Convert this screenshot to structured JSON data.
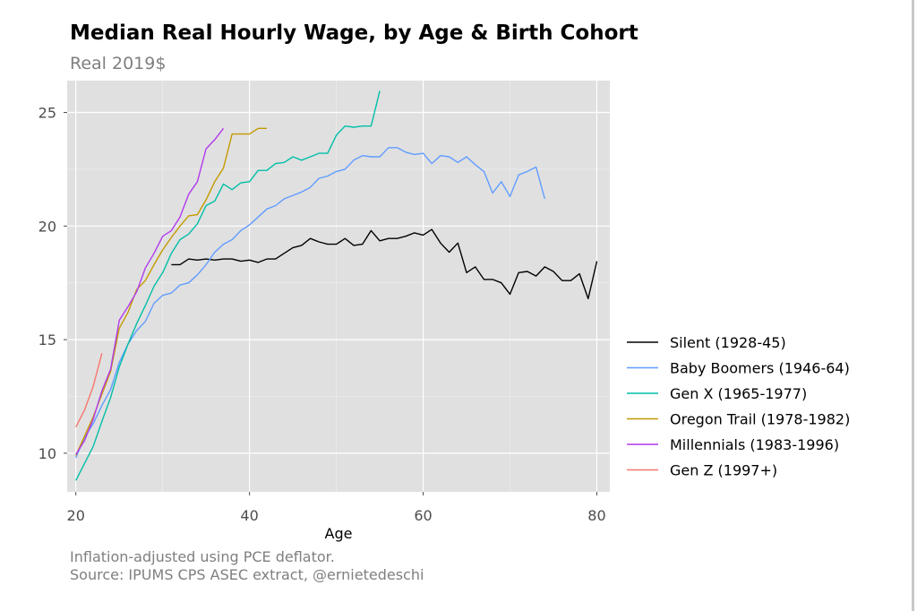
{
  "title": "Median Real Hourly Wage, by Age & Birth Cohort",
  "subtitle": "Real 2019$",
  "caption_line1": "Inflation-adjusted using PCE deflator.",
  "caption_line2": "Source: IPUMS CPS ASEC extract, @ernietedeschi",
  "chart_data": {
    "type": "line",
    "title": "Median Real Hourly Wage, by Age & Birth Cohort",
    "subtitle": "Real 2019$",
    "xlabel": "Age",
    "ylabel": "",
    "xlim": [
      19,
      81.5
    ],
    "ylim": [
      8.3,
      26.4
    ],
    "x_ticks": [
      20,
      40,
      60,
      80
    ],
    "y_ticks": [
      10,
      15,
      20,
      25
    ],
    "grid": true,
    "panel_background": "#e0e0e0",
    "legend_position": "right",
    "series": [
      {
        "name": "Silent (1928-45)",
        "color": "#000000",
        "x": [
          31,
          32,
          33,
          34,
          35,
          36,
          37,
          38,
          39,
          40,
          41,
          42,
          43,
          44,
          45,
          46,
          47,
          48,
          49,
          50,
          51,
          52,
          53,
          54,
          55,
          56,
          57,
          58,
          59,
          60,
          61,
          62,
          63,
          64,
          65,
          66,
          67,
          68,
          69,
          70,
          71,
          72,
          73,
          74,
          75,
          76,
          77,
          78,
          79,
          80
        ],
        "y": [
          18.3,
          18.3,
          18.55,
          18.5,
          18.55,
          18.5,
          18.55,
          18.55,
          18.45,
          18.5,
          18.4,
          18.55,
          18.55,
          18.8,
          19.05,
          19.15,
          19.45,
          19.3,
          19.2,
          19.2,
          19.45,
          19.15,
          19.2,
          19.8,
          19.35,
          19.45,
          19.45,
          19.55,
          19.7,
          19.6,
          19.85,
          19.25,
          18.85,
          19.25,
          17.95,
          18.2,
          17.65,
          17.65,
          17.5,
          17.0,
          17.95,
          18.0,
          17.8,
          18.2,
          18.0,
          17.6,
          17.6,
          17.9,
          16.8,
          18.45
        ]
      },
      {
        "name": "Baby Boomers (1946-64)",
        "color": "#619cff",
        "x": [
          20,
          21,
          22,
          23,
          24,
          25,
          26,
          27,
          28,
          29,
          30,
          31,
          32,
          33,
          34,
          35,
          36,
          37,
          38,
          39,
          40,
          41,
          42,
          43,
          44,
          45,
          46,
          47,
          48,
          49,
          50,
          51,
          52,
          53,
          54,
          55,
          56,
          57,
          58,
          59,
          60,
          61,
          62,
          63,
          64,
          65,
          66,
          67,
          68,
          69,
          70,
          71,
          72,
          73,
          74
        ],
        "y": [
          9.8,
          10.7,
          11.3,
          12.1,
          12.8,
          14.0,
          14.8,
          15.4,
          15.8,
          16.6,
          16.95,
          17.05,
          17.4,
          17.5,
          17.85,
          18.3,
          18.85,
          19.2,
          19.4,
          19.8,
          20.05,
          20.4,
          20.75,
          20.9,
          21.2,
          21.35,
          21.5,
          21.7,
          22.1,
          22.2,
          22.4,
          22.5,
          22.9,
          23.1,
          23.05,
          23.05,
          23.45,
          23.45,
          23.25,
          23.15,
          23.2,
          22.75,
          23.1,
          23.05,
          22.8,
          23.05,
          22.7,
          22.4,
          21.45,
          21.95,
          21.3,
          22.25,
          22.4,
          22.6,
          21.2
        ]
      },
      {
        "name": "Gen X (1965-1977)",
        "color": "#00bfa8",
        "x": [
          20,
          21,
          22,
          23,
          24,
          25,
          26,
          27,
          28,
          29,
          30,
          31,
          32,
          33,
          34,
          35,
          36,
          37,
          38,
          39,
          40,
          41,
          42,
          43,
          44,
          45,
          46,
          47,
          48,
          49,
          50,
          51,
          52,
          53,
          54,
          55
        ],
        "y": [
          8.8,
          9.55,
          10.3,
          11.4,
          12.45,
          13.8,
          14.8,
          15.7,
          16.5,
          17.35,
          17.95,
          18.8,
          19.4,
          19.65,
          20.1,
          20.9,
          21.1,
          21.85,
          21.6,
          21.9,
          21.95,
          22.45,
          22.45,
          22.75,
          22.8,
          23.05,
          22.9,
          23.05,
          23.2,
          23.2,
          24.0,
          24.4,
          24.35,
          24.4,
          24.4,
          25.95
        ]
      },
      {
        "name": "Oregon Trail (1978-1982)",
        "color": "#c49a00",
        "x": [
          20,
          21,
          22,
          23,
          24,
          25,
          26,
          27,
          28,
          29,
          30,
          31,
          32,
          33,
          34,
          35,
          36,
          37,
          38,
          39,
          40,
          41,
          42
        ],
        "y": [
          9.9,
          10.75,
          11.6,
          12.6,
          13.6,
          15.5,
          16.2,
          17.2,
          17.6,
          18.3,
          18.95,
          19.5,
          20.0,
          20.45,
          20.5,
          21.15,
          21.95,
          22.55,
          24.05,
          24.05,
          24.05,
          24.3,
          24.3
        ]
      },
      {
        "name": "Millennials (1983-1996)",
        "color": "#b23aee",
        "x": [
          20,
          21,
          22,
          23,
          24,
          25,
          26,
          27,
          28,
          29,
          30,
          31,
          32,
          33,
          34,
          35,
          36,
          37
        ],
        "y": [
          9.95,
          10.55,
          11.5,
          12.75,
          13.7,
          15.85,
          16.45,
          17.1,
          18.15,
          18.8,
          19.55,
          19.8,
          20.4,
          21.4,
          21.95,
          23.4,
          23.8,
          24.3
        ]
      },
      {
        "name": "Gen Z (1997+)",
        "color": "#f8766d",
        "x": [
          20,
          21,
          22,
          23
        ],
        "y": [
          11.15,
          11.9,
          12.95,
          14.4
        ]
      }
    ]
  }
}
